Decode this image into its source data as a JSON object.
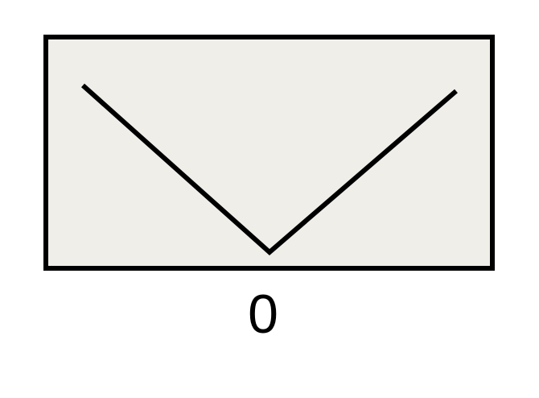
{
  "diagram": {
    "label": "0",
    "colors": {
      "panel_fill": "#f0eee9",
      "stroke": "#000000",
      "background": "#ffffff"
    },
    "shape": "v-line"
  }
}
